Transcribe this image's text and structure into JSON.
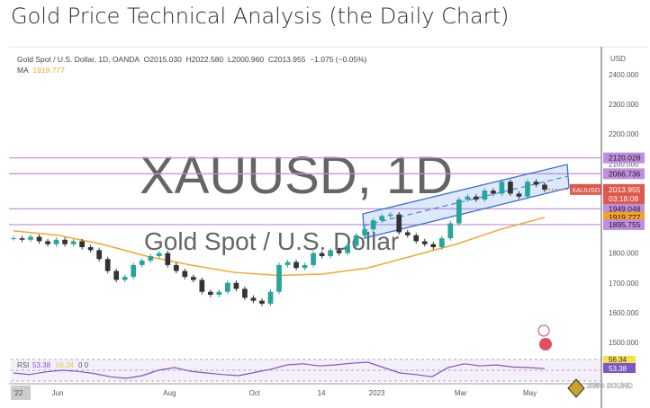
{
  "page_title": "Gold Price Technical Analysis (the Daily Chart)",
  "legend": {
    "symbol": "Gold Spot / U.S. Dollar, 1D, OANDA",
    "open": "O2015.030",
    "high": "H2022.580",
    "low": "L2000.960",
    "close": "C2013.955",
    "change": "−1.075 (−0.05%)",
    "ma_label": "MA",
    "ma_value": "1919.777"
  },
  "watermark": {
    "ticker": "XAUUSD, 1D",
    "name": "Gold Spot / U.S. Dollar"
  },
  "currency": "USD",
  "logo_text": "SINO SOUND",
  "chart_data": {
    "type": "candlestick",
    "x_tick_labels": [
      "'22",
      "Jun",
      "Aug",
      "Oct",
      "14",
      "2023",
      "Mar",
      "May"
    ],
    "x_tick_index": [
      0,
      5,
      18,
      28,
      36,
      42,
      52,
      60
    ],
    "y_ticks": [
      "2400.000",
      "2300.000",
      "2200.000",
      "2100.000",
      "1800.000",
      "1700.000",
      "1600.000",
      "1500.000"
    ],
    "ylim": [
      1500,
      2400
    ],
    "closes": [
      1850,
      1845,
      1855,
      1840,
      1830,
      1845,
      1830,
      1840,
      1820,
      1810,
      1780,
      1740,
      1710,
      1720,
      1760,
      1775,
      1790,
      1800,
      1760,
      1740,
      1720,
      1710,
      1670,
      1660,
      1670,
      1700,
      1680,
      1650,
      1640,
      1630,
      1670,
      1760,
      1770,
      1750,
      1760,
      1800,
      1790,
      1810,
      1800,
      1825,
      1860,
      1880,
      1910,
      1925,
      1930,
      1870,
      1860,
      1840,
      1830,
      1820,
      1850,
      1900,
      1980,
      1990,
      1980,
      2010,
      2000,
      2040,
      2000,
      1990,
      2040,
      2030,
      2013
    ],
    "ma": [
      1875,
      1860,
      1830,
      1790,
      1760,
      1735,
      1725,
      1730,
      1750,
      1790,
      1830,
      1880,
      1920
    ],
    "levels": [
      {
        "value": "2120.028",
        "color": "#c08ee0"
      },
      {
        "value": "2066.736",
        "color": "#c08ee0"
      },
      {
        "value": "1949.048",
        "color": "#c08ee0"
      },
      {
        "value": "1919.777",
        "color": "#f7a21b"
      },
      {
        "value": "1895.755",
        "color": "#c08ee0"
      }
    ],
    "last": {
      "label": "XAUUSD",
      "value": "2013.955",
      "countdown": "03:18:08",
      "color": "#e0584b"
    },
    "up_color": "#26a69a",
    "down_color": "#333333",
    "rsi": {
      "label": "RSI",
      "value": "53.38",
      "ma_value": "56.34",
      "extra": "0 0",
      "values": [
        45,
        42,
        47,
        50,
        48,
        44,
        38,
        35,
        40,
        50,
        55,
        48,
        45,
        42,
        40,
        46,
        52,
        60,
        62,
        58,
        60,
        63,
        65,
        55,
        45,
        42,
        38,
        55,
        62,
        58,
        60,
        56,
        55,
        53
      ]
    }
  }
}
